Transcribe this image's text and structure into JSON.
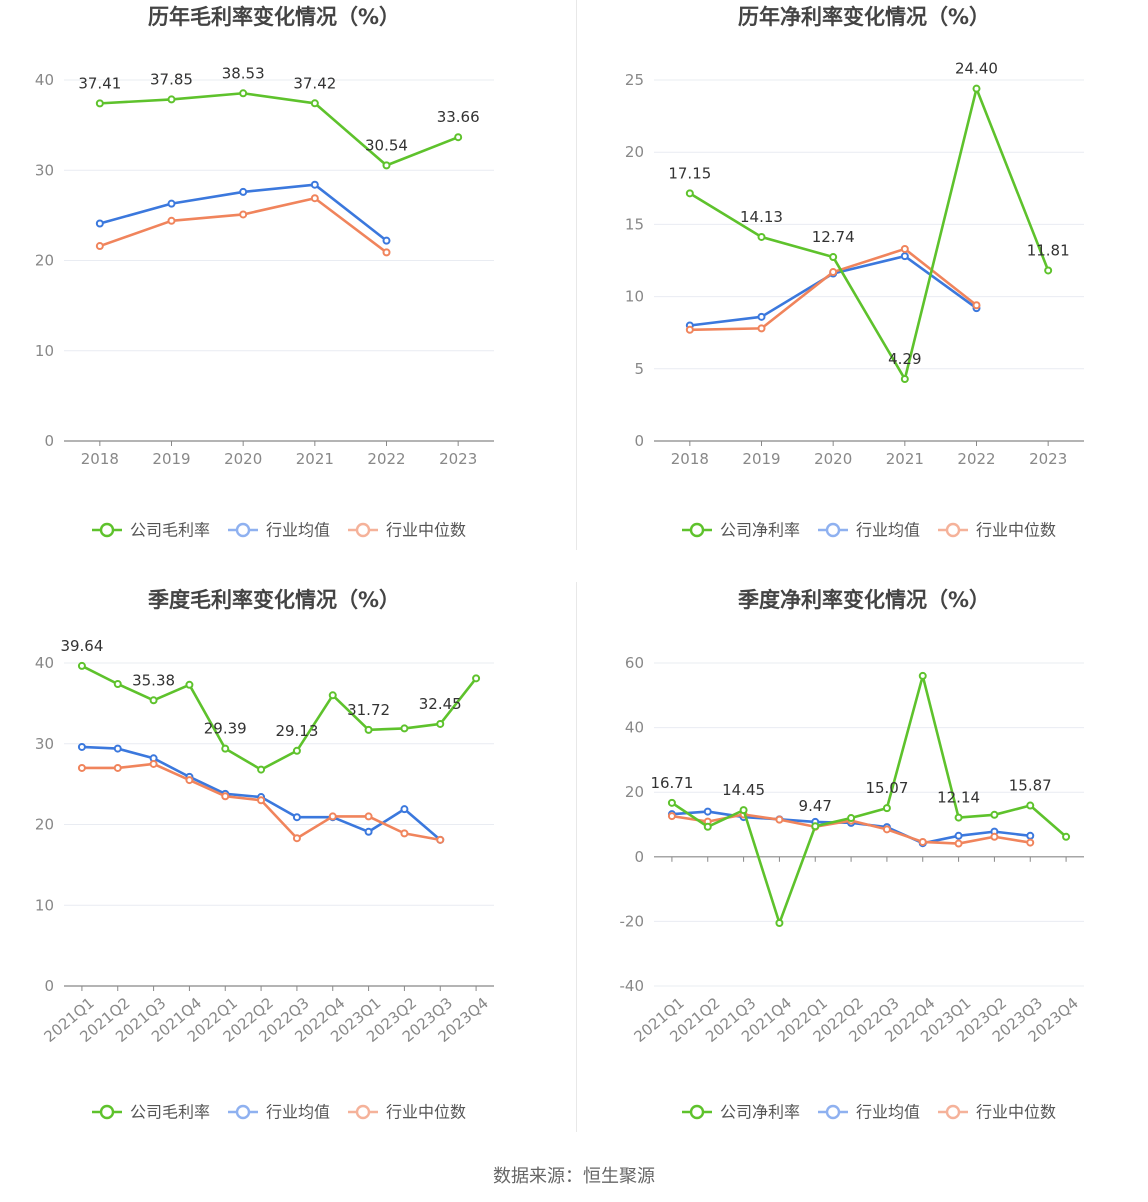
{
  "source": "数据来源：恒生聚源",
  "colors": {
    "company": "#5ec22c",
    "avg": "#3b78dd",
    "median": "#f0845c",
    "avg_legend": "#8fb1f0",
    "median_legend": "#f5b29a",
    "grid": "#e9ecf2",
    "axis": "#888888",
    "tick": "#888888",
    "label": "#333333"
  },
  "chart_data": [
    {
      "type": "line",
      "title": "历年毛利率变化情况（%）",
      "categories": [
        "2018",
        "2019",
        "2020",
        "2021",
        "2022",
        "2023"
      ],
      "ylim": [
        0,
        40
      ],
      "yticks": [
        0,
        10,
        20,
        30,
        40
      ],
      "series": [
        {
          "name": "公司毛利率",
          "role": "company",
          "values": [
            37.41,
            37.85,
            38.53,
            37.42,
            30.54,
            33.66
          ],
          "labels": [
            "37.41",
            "37.85",
            "38.53",
            "37.42",
            "30.54",
            "33.66"
          ]
        },
        {
          "name": "行业均值",
          "role": "avg",
          "values": [
            24.1,
            26.3,
            27.6,
            28.4,
            22.2,
            null
          ]
        },
        {
          "name": "行业中位数",
          "role": "median",
          "values": [
            21.6,
            24.4,
            25.1,
            26.9,
            20.9,
            null
          ]
        }
      ]
    },
    {
      "type": "line",
      "title": "历年净利率变化情况（%）",
      "categories": [
        "2018",
        "2019",
        "2020",
        "2021",
        "2022",
        "2023"
      ],
      "ylim": [
        0,
        25
      ],
      "yticks": [
        0,
        5,
        10,
        15,
        20,
        25
      ],
      "series": [
        {
          "name": "公司净利率",
          "role": "company",
          "values": [
            17.15,
            14.13,
            12.74,
            4.29,
            24.4,
            11.81
          ],
          "labels": [
            "17.15",
            "14.13",
            "12.74",
            "4.29",
            "24.40",
            "11.81"
          ]
        },
        {
          "name": "行业均值",
          "role": "avg",
          "values": [
            8.0,
            8.6,
            11.6,
            12.8,
            9.2,
            null
          ]
        },
        {
          "name": "行业中位数",
          "role": "median",
          "values": [
            7.7,
            7.8,
            11.7,
            13.3,
            9.4,
            null
          ]
        }
      ]
    },
    {
      "type": "line",
      "title": "季度毛利率变化情况（%）",
      "categories": [
        "2021Q1",
        "2021Q2",
        "2021Q3",
        "2021Q4",
        "2022Q1",
        "2022Q2",
        "2022Q3",
        "2022Q4",
        "2023Q1",
        "2023Q2",
        "2023Q3",
        "2023Q4"
      ],
      "ylim": [
        0,
        40
      ],
      "yticks": [
        0,
        10,
        20,
        30,
        40
      ],
      "series": [
        {
          "name": "公司毛利率",
          "role": "company",
          "values": [
            39.64,
            37.4,
            35.38,
            37.3,
            29.39,
            26.8,
            29.13,
            36.0,
            31.72,
            31.9,
            32.45,
            38.1
          ],
          "labels": [
            "39.64",
            "",
            "35.38",
            "",
            "29.39",
            "",
            "29.13",
            "",
            "31.72",
            "",
            "32.45",
            ""
          ]
        },
        {
          "name": "行业均值",
          "role": "avg",
          "values": [
            29.6,
            29.4,
            28.2,
            25.9,
            23.8,
            23.4,
            20.9,
            20.9,
            19.1,
            21.9,
            18.1,
            null
          ]
        },
        {
          "name": "行业中位数",
          "role": "median",
          "values": [
            27.0,
            27.0,
            27.5,
            25.5,
            23.5,
            23.0,
            18.3,
            21.0,
            21.0,
            18.9,
            18.1,
            null
          ]
        }
      ]
    },
    {
      "type": "line",
      "title": "季度净利率变化情况（%）",
      "categories": [
        "2021Q1",
        "2021Q2",
        "2021Q3",
        "2021Q4",
        "2022Q1",
        "2022Q2",
        "2022Q3",
        "2022Q4",
        "2023Q1",
        "2023Q2",
        "2023Q3",
        "2023Q4"
      ],
      "ylim": [
        -40,
        60
      ],
      "yticks": [
        -40,
        -20,
        0,
        20,
        40,
        60
      ],
      "series": [
        {
          "name": "公司净利率",
          "role": "company",
          "values": [
            16.71,
            9.3,
            14.45,
            -20.5,
            9.47,
            12.0,
            15.07,
            56.0,
            12.14,
            13.0,
            15.87,
            6.2
          ],
          "labels": [
            "16.71",
            "",
            "14.45",
            "",
            "9.47",
            "",
            "15.07",
            "",
            "12.14",
            "",
            "15.87",
            ""
          ]
        },
        {
          "name": "行业均值",
          "role": "avg",
          "values": [
            13.2,
            14.0,
            12.3,
            11.6,
            10.8,
            10.5,
            9.2,
            4.2,
            6.5,
            7.8,
            6.5,
            null
          ]
        },
        {
          "name": "行业中位数",
          "role": "median",
          "values": [
            12.6,
            10.9,
            13.1,
            11.5,
            9.3,
            11.2,
            8.5,
            4.6,
            4.1,
            6.2,
            4.4,
            null
          ]
        }
      ]
    }
  ]
}
